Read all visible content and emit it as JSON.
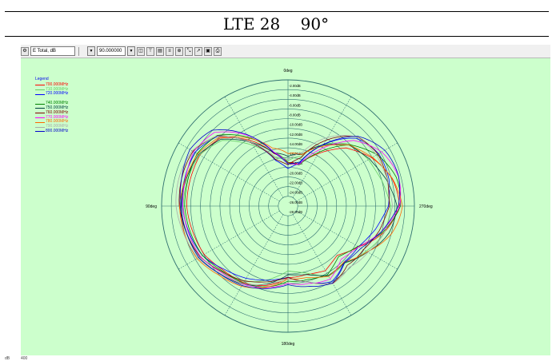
{
  "page": {
    "title": "LTE 28    90°"
  },
  "toolbar": {
    "field_select": "E Total, dB",
    "angle_value": "90.000000"
  },
  "legend": {
    "title": "Legend",
    "items": [
      {
        "label": "700.000MHz",
        "color": "#ff0000",
        "group": 1
      },
      {
        "label": "710.000MHz",
        "color": "#66cc66",
        "group": 1
      },
      {
        "label": "720.000MHz",
        "color": "#0000ff",
        "group": 1
      },
      {
        "label": "740.000MHz",
        "color": "#008000",
        "group": 2
      },
      {
        "label": "750.000MHz",
        "color": "#004040",
        "group": 2
      },
      {
        "label": "760.000MHz",
        "color": "#800000",
        "group": 2
      },
      {
        "label": "770.000MHz",
        "color": "#ff00ff",
        "group": 2
      },
      {
        "label": "780.000MHz",
        "color": "#ff6600",
        "group": 2
      },
      {
        "label": "790.000MHz",
        "color": "#aaaaaa",
        "group": 2
      },
      {
        "label": "800.000MHz",
        "color": "#0000cc",
        "group": 2
      }
    ]
  },
  "polar": {
    "angle_labels": {
      "top": "0deg",
      "left": "90deg",
      "right": "270deg",
      "bottom": "180deg"
    },
    "ring_labels": [
      "-2.00dB",
      "-4.00dB",
      "-6.00dB",
      "-8.00dB",
      "-10.00dB",
      "-12.00dB",
      "-14.00dB",
      "-16.00dB",
      "-18.00dB",
      "-20.00dB",
      "-22.00dB",
      "-24.00dB",
      "-26.00dB",
      "-28.00dB"
    ],
    "colors": {
      "background": "#ccffcc",
      "rings": "#2f6f6f",
      "grid": "#2f6f6f"
    }
  },
  "status": {
    "left1": "dB",
    "left2": "400"
  }
}
